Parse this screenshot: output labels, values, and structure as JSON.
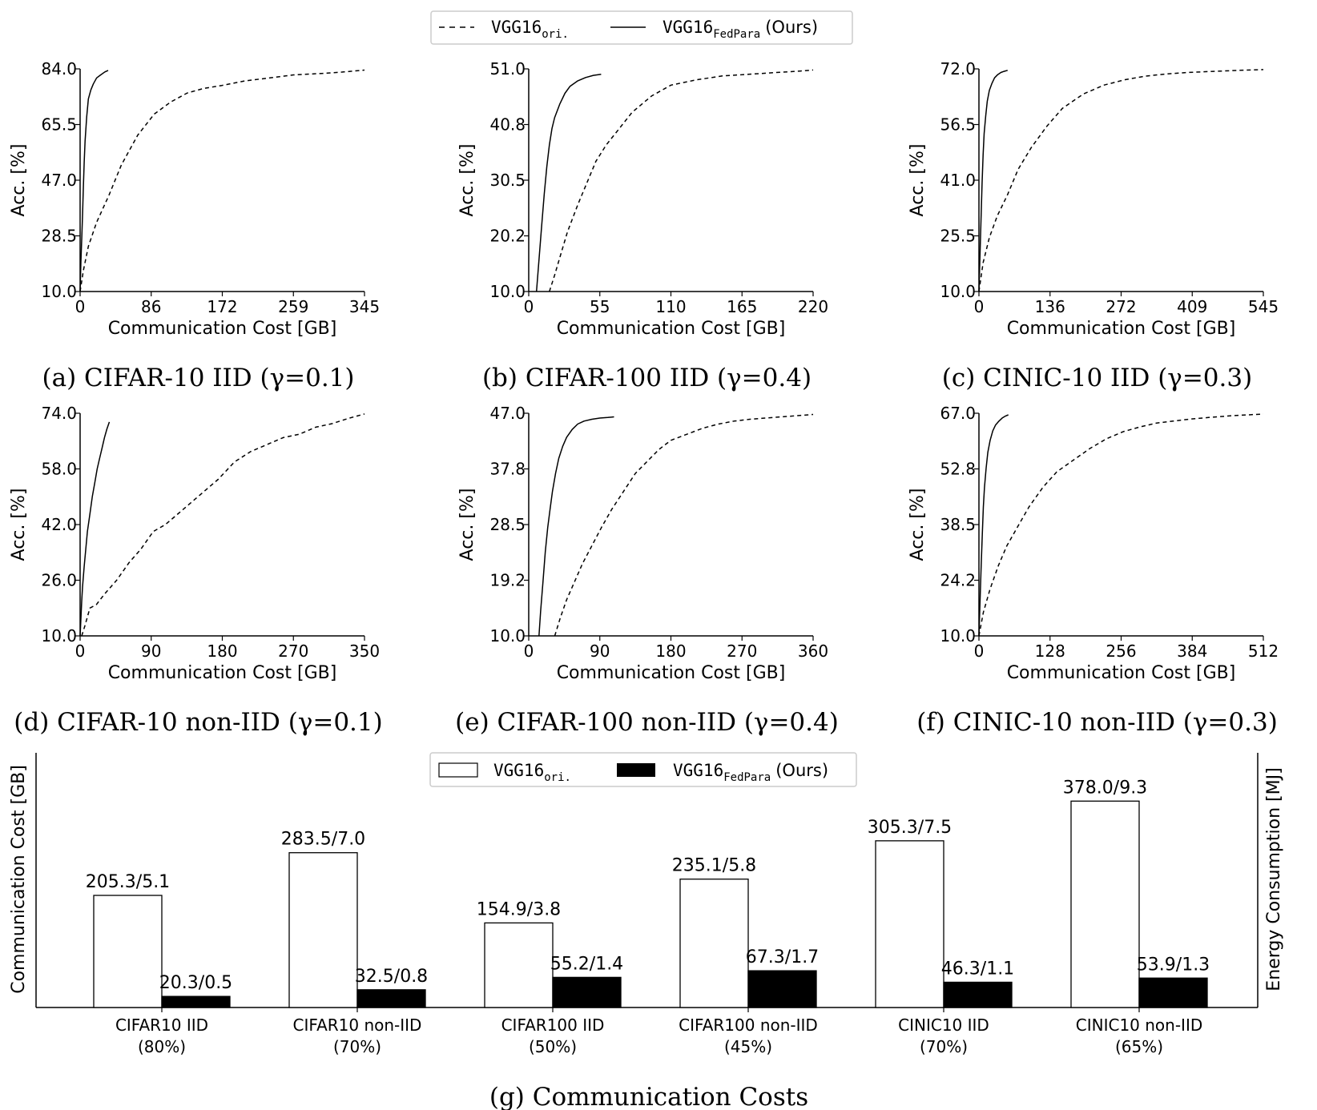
{
  "legend": {
    "baseline_label": "VGG16",
    "baseline_sub": "ori.",
    "ours_label": "VGG16",
    "ours_sub": "FedPara",
    "ours_suffix": "(Ours)"
  },
  "chart_data": [
    {
      "type": "line",
      "caption": "(a) CIFAR-10 IID (γ=0.1)",
      "xlabel": "Communication Cost [GB]",
      "ylabel": "Acc. [%]",
      "xticks": [
        "0",
        "86",
        "172",
        "259",
        "345"
      ],
      "yticks": [
        "10.0",
        "28.5",
        "47.0",
        "65.5",
        "84.0"
      ],
      "xlim": [
        0,
        345
      ],
      "ylim": [
        10,
        84
      ],
      "series": [
        {
          "name": "VGG16ori.",
          "style": "dashed",
          "x": [
            0,
            4,
            10,
            20,
            35,
            50,
            70,
            90,
            110,
            130,
            150,
            172,
            200,
            230,
            259,
            280,
            300,
            320,
            345
          ],
          "y": [
            10,
            17,
            25,
            33,
            42,
            52,
            62,
            69,
            73,
            76,
            77.5,
            78.5,
            80,
            81,
            82,
            82.3,
            82.6,
            83,
            83.6
          ]
        },
        {
          "name": "VGG16FedPara (Ours)",
          "style": "solid",
          "x": [
            0,
            1,
            2,
            3,
            4,
            5,
            6,
            8,
            10,
            13,
            16,
            20,
            25,
            30,
            34
          ],
          "y": [
            10,
            20,
            28,
            36,
            45,
            53,
            60,
            68,
            74,
            77,
            79,
            81,
            82,
            83,
            83.5
          ]
        }
      ]
    },
    {
      "type": "line",
      "caption": "(b) CIFAR-100 IID (γ=0.4)",
      "xlabel": "Communication Cost [GB]",
      "ylabel": "Acc. [%]",
      "xticks": [
        "0",
        "55",
        "110",
        "165",
        "220"
      ],
      "yticks": [
        "10.0",
        "20.2",
        "30.5",
        "40.8",
        "51.0"
      ],
      "xlim": [
        0,
        220
      ],
      "ylim": [
        10,
        51
      ],
      "series": [
        {
          "name": "VGG16ori.",
          "style": "dashed",
          "x": [
            16,
            20,
            25,
            30,
            38,
            45,
            52,
            60,
            70,
            80,
            95,
            110,
            130,
            150,
            170,
            190,
            210,
            220
          ],
          "y": [
            10,
            13,
            17,
            21,
            26,
            30,
            34,
            37,
            40,
            43,
            46,
            48,
            49,
            49.7,
            50,
            50.3,
            50.6,
            50.8
          ]
        },
        {
          "name": "VGG16FedPara (Ours)",
          "style": "solid",
          "x": [
            6,
            8,
            10,
            12,
            14,
            16,
            18,
            20,
            24,
            28,
            32,
            38,
            44,
            50,
            56
          ],
          "y": [
            10,
            16,
            22,
            28,
            33,
            37,
            40,
            42,
            44.5,
            46.5,
            47.8,
            48.8,
            49.4,
            49.8,
            50
          ]
        }
      ]
    },
    {
      "type": "line",
      "caption": "(c) CINIC-10 IID (γ=0.3)",
      "xlabel": "Communication Cost [GB]",
      "ylabel": "Acc. [%]",
      "xticks": [
        "0",
        "136",
        "272",
        "409",
        "545"
      ],
      "yticks": [
        "10.0",
        "25.5",
        "41.0",
        "56.5",
        "72.0"
      ],
      "xlim": [
        0,
        545
      ],
      "ylim": [
        10,
        72
      ],
      "series": [
        {
          "name": "VGG16ori.",
          "style": "dashed",
          "x": [
            0,
            8,
            20,
            35,
            55,
            75,
            100,
            130,
            160,
            200,
            240,
            280,
            320,
            360,
            400,
            450,
            500,
            545
          ],
          "y": [
            10,
            18,
            25,
            31,
            37,
            44,
            50,
            56,
            61,
            65,
            67.5,
            69,
            70,
            70.6,
            71,
            71.3,
            71.6,
            71.8
          ]
        },
        {
          "name": "VGG16FedPara (Ours)",
          "style": "solid",
          "x": [
            0,
            2,
            4,
            6,
            8,
            10,
            13,
            16,
            20,
            25,
            30,
            36,
            42,
            48,
            55
          ],
          "y": [
            10,
            20,
            30,
            40,
            48,
            54,
            59,
            63,
            66,
            68,
            69.5,
            70.4,
            71,
            71.3,
            71.6
          ]
        }
      ]
    },
    {
      "type": "line",
      "caption": "(d) CIFAR-10 non-IID (γ=0.1)",
      "xlabel": "Communication Cost [GB]",
      "ylabel": "Acc. [%]",
      "xticks": [
        "0",
        "90",
        "180",
        "270",
        "350"
      ],
      "yticks": [
        "10.0",
        "26.0",
        "42.0",
        "58.0",
        "74.0"
      ],
      "xlim": [
        0,
        350
      ],
      "ylim": [
        10,
        74
      ],
      "series": [
        {
          "name": "VGG16ori.",
          "style": "dashed",
          "x": [
            2,
            6,
            12,
            20,
            30,
            45,
            60,
            75,
            90,
            105,
            120,
            135,
            150,
            170,
            190,
            210,
            230,
            250,
            270,
            290,
            310,
            330,
            350
          ],
          "y": [
            10,
            13,
            18,
            19,
            22,
            26,
            31,
            35,
            40,
            42,
            45,
            48,
            51,
            55,
            60,
            63,
            65,
            67,
            68,
            70,
            71,
            72.5,
            73.8
          ]
        },
        {
          "name": "VGG16FedPara (Ours)",
          "style": "solid",
          "x": [
            0,
            1,
            2,
            3,
            5,
            7,
            9,
            12,
            15,
            18,
            21,
            24,
            27,
            30,
            33,
            36
          ],
          "y": [
            10,
            15,
            20,
            24,
            30,
            35,
            40,
            45,
            50,
            54,
            58,
            61,
            64,
            67,
            69.5,
            71.5
          ]
        }
      ]
    },
    {
      "type": "line",
      "caption": "(e) CIFAR-100 non-IID (γ=0.4)",
      "xlabel": "Communication Cost [GB]",
      "ylabel": "Acc. [%]",
      "xticks": [
        "0",
        "90",
        "180",
        "270",
        "360"
      ],
      "yticks": [
        "10.0",
        "19.2",
        "28.5",
        "37.8",
        "47.0"
      ],
      "xlim": [
        0,
        360
      ],
      "ylim": [
        10,
        47
      ],
      "series": [
        {
          "name": "VGG16ori.",
          "style": "dashed",
          "x": [
            33,
            40,
            48,
            58,
            68,
            80,
            92,
            105,
            120,
            135,
            150,
            165,
            180,
            200,
            220,
            240,
            260,
            280,
            300,
            320,
            340,
            360
          ],
          "y": [
            10,
            13,
            16,
            19,
            22,
            25,
            28,
            31,
            34,
            37,
            39,
            41,
            42.5,
            43.5,
            44.5,
            45.2,
            45.7,
            46,
            46.2,
            46.4,
            46.6,
            46.8
          ]
        },
        {
          "name": "VGG16FedPara (Ours)",
          "style": "solid",
          "x": [
            13,
            15,
            18,
            21,
            24,
            27,
            30,
            34,
            38,
            43,
            48,
            55,
            62,
            70,
            80,
            90,
            100,
            108
          ],
          "y": [
            10,
            14,
            19,
            24,
            28,
            31,
            34,
            37,
            39.5,
            41.5,
            43,
            44.3,
            45.2,
            45.7,
            46,
            46.2,
            46.3,
            46.4
          ]
        }
      ]
    },
    {
      "type": "line",
      "caption": "(f) CINIC-10 non-IID (γ=0.3)",
      "xlabel": "Communication Cost [GB]",
      "ylabel": "Acc. [%]",
      "xticks": [
        "0",
        "128",
        "256",
        "384",
        "512"
      ],
      "yticks": [
        "10.0",
        "24.2",
        "38.5",
        "52.8",
        "67.0"
      ],
      "xlim": [
        0,
        512
      ],
      "ylim": [
        10,
        67
      ],
      "series": [
        {
          "name": "VGG16ori.",
          "style": "dashed",
          "x": [
            0,
            8,
            20,
            35,
            50,
            70,
            90,
            115,
            140,
            170,
            200,
            230,
            260,
            290,
            320,
            350,
            380,
            420,
            460,
            512
          ],
          "y": [
            10,
            16,
            22,
            28,
            33,
            38,
            43,
            48,
            52,
            55,
            58,
            60.5,
            62.3,
            63.5,
            64.5,
            65,
            65.5,
            66,
            66.4,
            66.8
          ]
        },
        {
          "name": "VGG16FedPara (Ours)",
          "style": "solid",
          "x": [
            0,
            2,
            4,
            6,
            8,
            10,
            13,
            16,
            20,
            25,
            30,
            36,
            42,
            48,
            53
          ],
          "y": [
            10,
            19,
            28,
            36,
            43,
            48,
            53,
            57,
            60,
            62.5,
            64,
            65,
            65.8,
            66.3,
            66.6
          ]
        }
      ]
    },
    {
      "type": "bar",
      "caption": "(g) Communication Costs",
      "ylabel_left": "Communication Cost [GB]",
      "ylabel_right": "Energy Consumption [MJ]",
      "categories": [
        "CIFAR10 IID",
        "CIFAR10 non-IID",
        "CIFAR100 IID",
        "CIFAR100 non-IID",
        "CINIC10 IID",
        "CINIC10 non-IID"
      ],
      "category_notes": [
        "(80%)",
        "(70%)",
        "(50%)",
        "(45%)",
        "(70%)",
        "(65%)"
      ],
      "ylim": [
        0,
        400
      ],
      "series": [
        {
          "name": "VGG16ori.",
          "fill": "#ffffff",
          "values": [
            205.3,
            283.5,
            154.9,
            235.1,
            305.3,
            378.0
          ],
          "labels": [
            "205.3/5.1",
            "283.5/7.0",
            "154.9/3.8",
            "235.1/5.8",
            "305.3/7.5",
            "378.0/9.3"
          ]
        },
        {
          "name": "VGG16FedPara (Ours)",
          "fill": "#000000",
          "values": [
            20.3,
            32.5,
            55.2,
            67.3,
            46.3,
            53.9
          ],
          "labels": [
            "20.3/0.5",
            "32.5/0.8",
            "55.2/1.4",
            "67.3/1.7",
            "46.3/1.1",
            "53.9/1.3"
          ]
        }
      ]
    }
  ]
}
